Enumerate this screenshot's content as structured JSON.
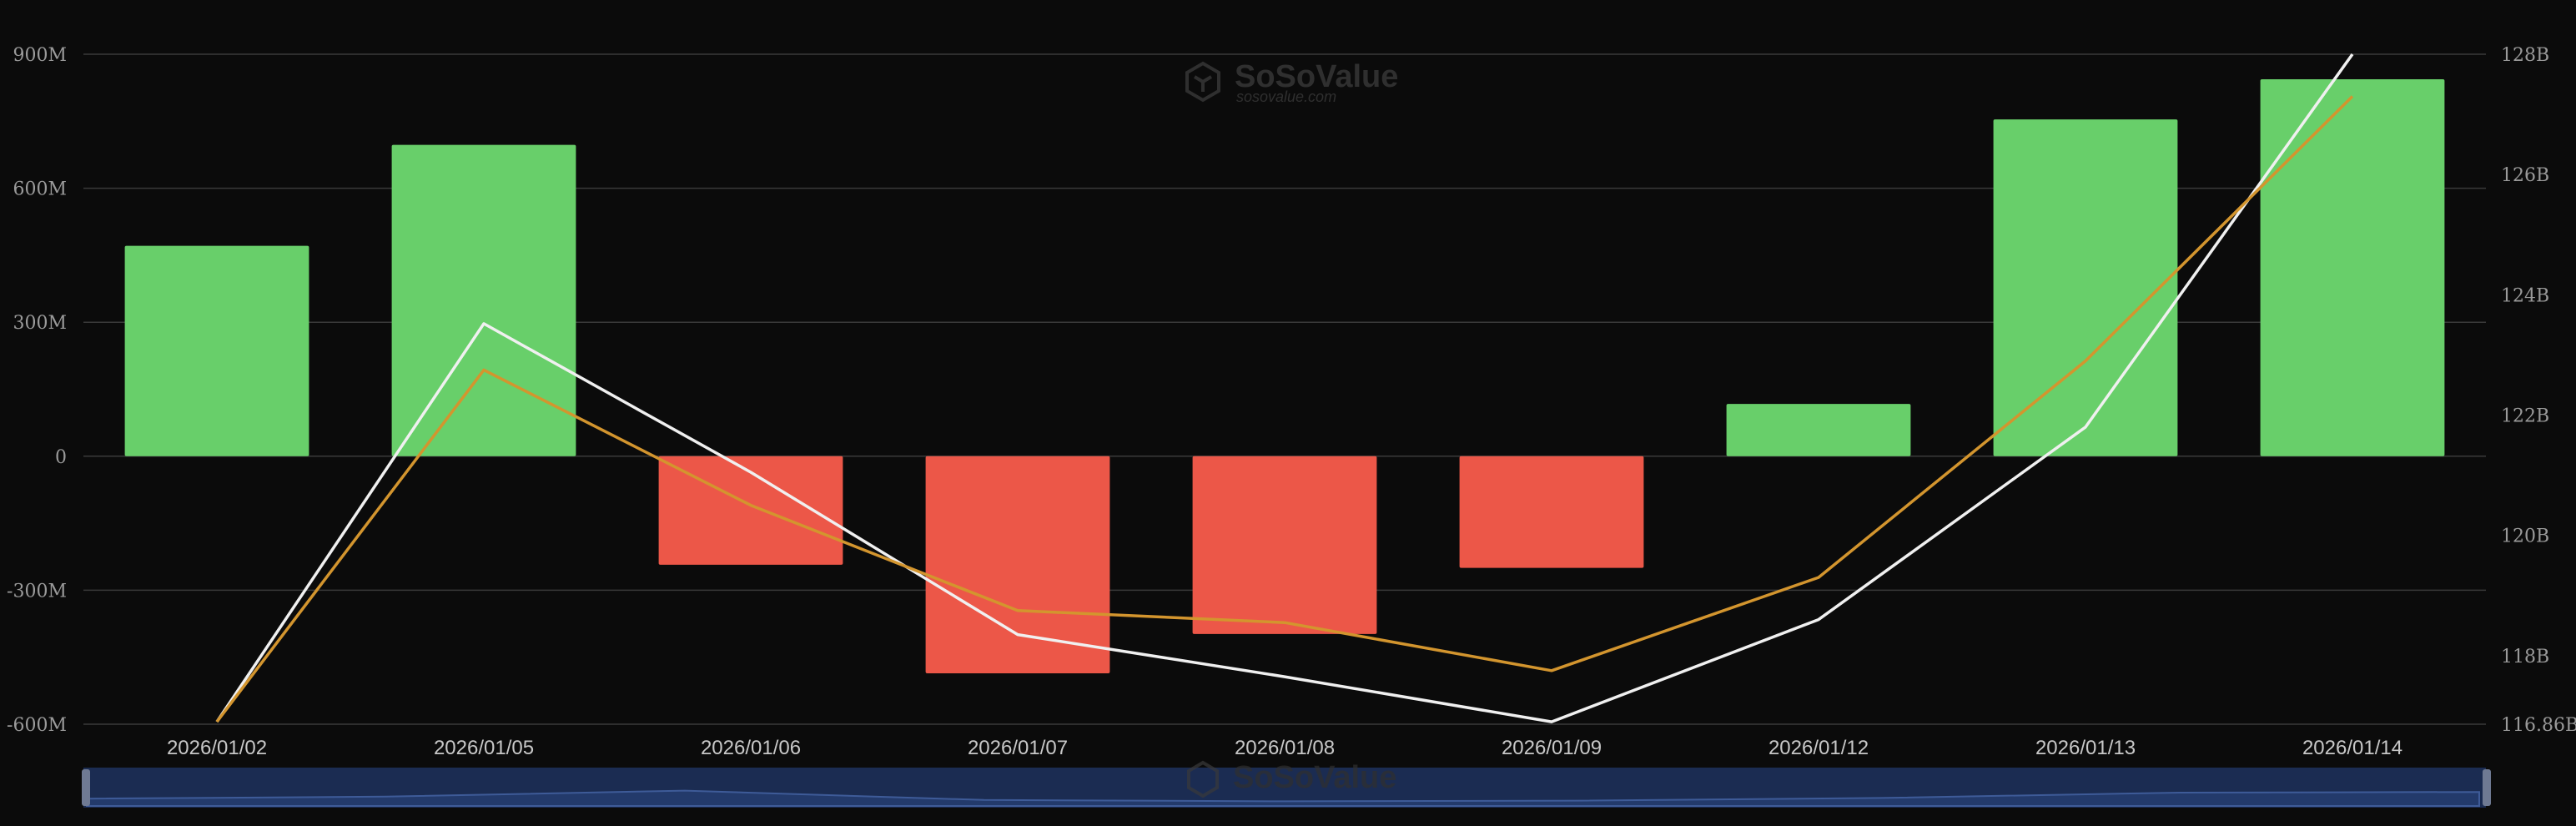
{
  "watermark": {
    "brand": "SoSoValue",
    "url": "sosovalue.com"
  },
  "colors": {
    "background": "#0b0b0b",
    "grid": "#3a3a3a",
    "inflow_bar": "#68cf6a",
    "outflow_bar": "#ec5748",
    "line_white": "#f0f0f0",
    "line_gold": "#d3952e",
    "navigator_fill": "#1b2c52",
    "navigator_line": "#3e5b98"
  },
  "chart_data": {
    "type": "bar",
    "categories": [
      "2026/01/02",
      "2026/01/05",
      "2026/01/06",
      "2026/01/07",
      "2026/01/08",
      "2026/01/09",
      "2026/01/12",
      "2026/01/13",
      "2026/01/14"
    ],
    "series": [
      {
        "type": "bar",
        "axis": "left",
        "values": [
          471,
          697,
          -243,
          -486,
          -398,
          -250,
          117,
          754,
          844
        ]
      },
      {
        "type": "line",
        "axis": "right",
        "color": "white",
        "values": [
          116.9,
          123.52,
          121.05,
          118.35,
          117.65,
          116.9,
          118.6,
          121.8,
          128.0
        ]
      },
      {
        "type": "line",
        "axis": "right",
        "color": "gold",
        "values": [
          116.9,
          122.75,
          120.5,
          118.75,
          118.55,
          117.75,
          119.3,
          122.9,
          127.3
        ]
      }
    ],
    "left_axis": {
      "ticks": [
        {
          "value": 900,
          "label": "900M"
        },
        {
          "value": 600,
          "label": "600M"
        },
        {
          "value": 300,
          "label": "300M"
        },
        {
          "value": 0,
          "label": "0"
        },
        {
          "value": -300,
          "label": "-300M"
        },
        {
          "value": -600,
          "label": "-600M"
        }
      ],
      "range": [
        -600,
        900
      ]
    },
    "right_axis": {
      "ticks": [
        {
          "value": 128,
          "label": "128B"
        },
        {
          "value": 126,
          "label": "126B"
        },
        {
          "value": 124,
          "label": "124B"
        },
        {
          "value": 122,
          "label": "122B"
        },
        {
          "value": 120,
          "label": "120B"
        },
        {
          "value": 118,
          "label": "118B"
        },
        {
          "value": 116.86,
          "label": "116.86B"
        }
      ],
      "range": [
        116.86,
        128
      ]
    },
    "grid": true,
    "legend": "none",
    "navigator": {
      "shape": [
        0.3,
        0.45,
        0.9,
        0.2,
        0.1,
        0.15,
        0.35,
        0.75,
        0.8
      ]
    }
  }
}
